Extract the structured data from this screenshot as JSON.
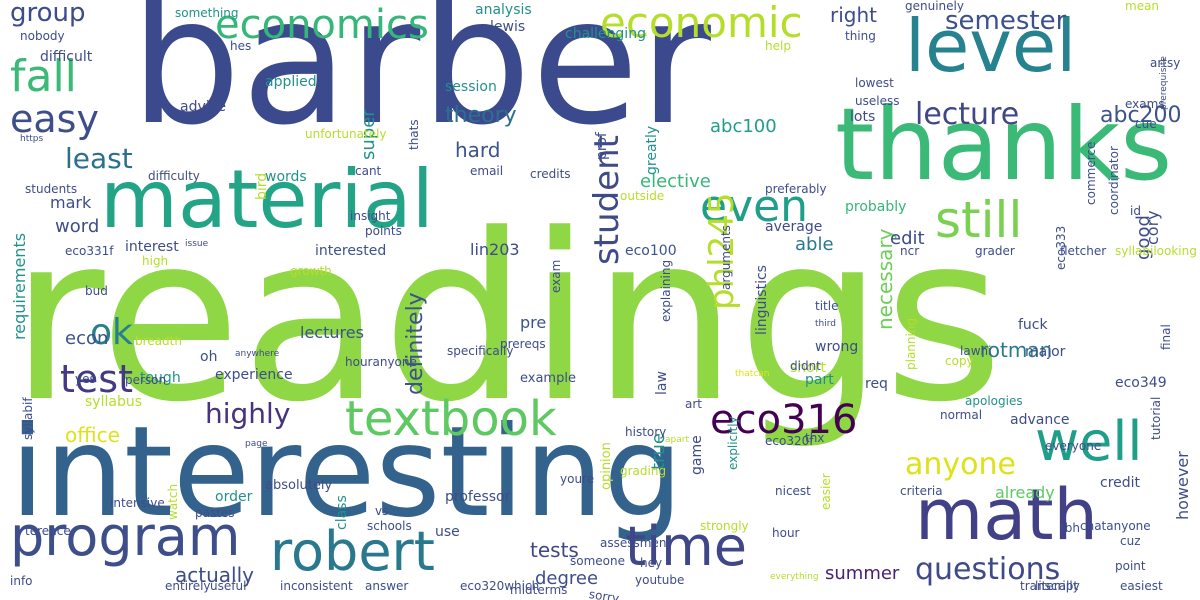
{
  "palette": {
    "dark_purple": "#440154",
    "indigo": "#3f4788",
    "blue": "#31688e",
    "teal": "#26828e",
    "sea": "#1f9e89",
    "green": "#35b779",
    "lime": "#6ece58",
    "yellow_green": "#b5de2b",
    "yellow": "#dde318"
  },
  "words": [
    {
      "text": "readings",
      "size": 230,
      "color": "#8fd744"
    },
    {
      "text": "barber",
      "size": 175,
      "color": "#3b4a8c"
    },
    {
      "text": "interesting",
      "size": 125,
      "color": "#33638d"
    },
    {
      "text": "thanks",
      "size": 100,
      "color": "#3aba76"
    },
    {
      "text": "material",
      "size": 80,
      "color": "#24a486"
    },
    {
      "text": "level",
      "size": 72,
      "color": "#26828e"
    },
    {
      "text": "math",
      "size": 70,
      "color": "#424086"
    },
    {
      "text": "robert",
      "size": 54,
      "color": "#2a788e"
    },
    {
      "text": "program",
      "size": 54,
      "color": "#3d4e8a"
    },
    {
      "text": "time",
      "size": 54,
      "color": "#3f4788"
    },
    {
      "text": "well",
      "size": 54,
      "color": "#1f9e89"
    },
    {
      "text": "still",
      "size": 50,
      "color": "#7ad151"
    },
    {
      "text": "textbook",
      "size": 48,
      "color": "#5ec962"
    },
    {
      "text": "economic",
      "size": 42,
      "color": "#b5de2b"
    },
    {
      "text": "economics",
      "size": 40,
      "color": "#35b779"
    },
    {
      "text": "even",
      "size": 44,
      "color": "#1f9e89"
    },
    {
      "text": "fall",
      "size": 44,
      "color": "#3aba76"
    },
    {
      "text": "easy",
      "size": 38,
      "color": "#3d4e8a"
    },
    {
      "text": "test",
      "size": 38,
      "color": "#443983"
    },
    {
      "text": "ok",
      "size": 36,
      "color": "#277f8e"
    },
    {
      "text": "student",
      "size": 34,
      "color": "#3e4a89"
    },
    {
      "text": "eco316",
      "size": 40,
      "color": "#440154"
    },
    {
      "text": "phl245",
      "size": 34,
      "color": "#b5de2b"
    },
    {
      "text": "anyone",
      "size": 30,
      "color": "#dde318"
    },
    {
      "text": "questions",
      "size": 30,
      "color": "#3e4a89"
    },
    {
      "text": "highly",
      "size": 28,
      "color": "#46327e"
    },
    {
      "text": "lecture",
      "size": 30,
      "color": "#3f4788"
    },
    {
      "text": "least",
      "size": 28,
      "color": "#2d708e"
    },
    {
      "text": "group",
      "size": 26,
      "color": "#3e4c8a"
    },
    {
      "text": "semester",
      "size": 26,
      "color": "#3b518b"
    },
    {
      "text": "abc200",
      "size": 22,
      "color": "#3b528b"
    },
    {
      "text": "right",
      "size": 20,
      "color": "#3e4c8a"
    },
    {
      "text": "theory",
      "size": 22,
      "color": "#2e6e8e"
    },
    {
      "text": "abc100",
      "size": 18,
      "color": "#1f9e89"
    },
    {
      "text": "hard",
      "size": 20,
      "color": "#3b528b"
    },
    {
      "text": "super",
      "size": 18,
      "color": "#21918c"
    },
    {
      "text": "definitely",
      "size": 22,
      "color": "#3b528b"
    },
    {
      "text": "actually",
      "size": 20,
      "color": "#3e4c8a"
    },
    {
      "text": "tests",
      "size": 20,
      "color": "#3f4788"
    },
    {
      "text": "summer",
      "size": 18,
      "color": "#482173"
    },
    {
      "text": "degree",
      "size": 18,
      "color": "#3e4c8a"
    },
    {
      "text": "rotman",
      "size": 20,
      "color": "#2a788e"
    },
    {
      "text": "necessary",
      "size": 20,
      "color": "#6ece58"
    },
    {
      "text": "office",
      "size": 20,
      "color": "#dde318"
    },
    {
      "text": "econ",
      "size": 18,
      "color": "#3b528b"
    },
    {
      "text": "mark",
      "size": 16,
      "color": "#3e4c8a"
    },
    {
      "text": "word",
      "size": 18,
      "color": "#3e4c8a"
    },
    {
      "text": "requirements",
      "size": 16,
      "color": "#21918c"
    },
    {
      "text": "true",
      "size": 18,
      "color": "#21918c"
    },
    {
      "text": "elective",
      "size": 18,
      "color": "#35b779"
    },
    {
      "text": "edit",
      "size": 18,
      "color": "#3e4c8a"
    },
    {
      "text": "able",
      "size": 18,
      "color": "#2a788e"
    },
    {
      "text": "good",
      "size": 18,
      "color": "#3e4c8a"
    },
    {
      "text": "cory",
      "size": 16,
      "color": "#3e4c8a"
    },
    {
      "text": "pre",
      "size": 16,
      "color": "#3b528b"
    },
    {
      "text": "lectures",
      "size": 16,
      "color": "#3b528b"
    },
    {
      "text": "already",
      "size": 16,
      "color": "#5ec962"
    },
    {
      "text": "advance",
      "size": 14,
      "color": "#3e4c8a"
    },
    {
      "text": "credit",
      "size": 14,
      "color": "#3e4c8a"
    },
    {
      "text": "however",
      "size": 16,
      "color": "#3e4c8a"
    },
    {
      "text": "lin203",
      "size": 16,
      "color": "#3e4c8a"
    },
    {
      "text": "interested",
      "size": 14,
      "color": "#3b528b"
    },
    {
      "text": "eco100",
      "size": 14,
      "color": "#3b528b"
    },
    {
      "text": "linguistics",
      "size": 14,
      "color": "#3e4c8a"
    },
    {
      "text": "fuck",
      "size": 14,
      "color": "#3e4c8a"
    },
    {
      "text": "major",
      "size": 14,
      "color": "#3e4c8a"
    },
    {
      "text": "eco349",
      "size": 14,
      "color": "#3e4c8a"
    },
    {
      "text": "average",
      "size": 14,
      "color": "#3e4c8a"
    },
    {
      "text": "probably",
      "size": 14,
      "color": "#35b779"
    },
    {
      "text": "wrong",
      "size": 14,
      "color": "#3e4c8a"
    },
    {
      "text": "short",
      "size": 14,
      "color": "#b5de2b"
    },
    {
      "text": "part",
      "size": 14,
      "color": "#21918c"
    },
    {
      "text": "req",
      "size": 14,
      "color": "#3e4c8a"
    },
    {
      "text": "example",
      "size": 13,
      "color": "#3e4c8a"
    },
    {
      "text": "law",
      "size": 14,
      "color": "#3e4c8a"
    },
    {
      "text": "opinion",
      "size": 13,
      "color": "#b5de2b"
    },
    {
      "text": "game",
      "size": 14,
      "color": "#3e4c8a"
    },
    {
      "text": "absolutely",
      "size": 13,
      "color": "#3e4c8a"
    },
    {
      "text": "professor",
      "size": 14,
      "color": "#3e4c8a"
    },
    {
      "text": "class",
      "size": 14,
      "color": "#21918c"
    },
    {
      "text": "schools",
      "size": 12,
      "color": "#3e4c8a"
    },
    {
      "text": "use",
      "size": 14,
      "color": "#3e4c8a"
    },
    {
      "text": "order",
      "size": 14,
      "color": "#21918c"
    },
    {
      "text": "oh",
      "size": 14,
      "color": "#3e4c8a"
    },
    {
      "text": "tough",
      "size": 14,
      "color": "#21918c"
    },
    {
      "text": "syllabus",
      "size": 14,
      "color": "#b5de2b"
    },
    {
      "text": "experience",
      "size": 14,
      "color": "#3e4c8a"
    },
    {
      "text": "info",
      "size": 12,
      "color": "#3e4c8a"
    },
    {
      "text": "entirely",
      "size": 12,
      "color": "#3e4c8a"
    },
    {
      "text": "useful",
      "size": 12,
      "color": "#3e4c8a"
    },
    {
      "text": "inconsistent",
      "size": 12,
      "color": "#3e4c8a"
    },
    {
      "text": "answer",
      "size": 12,
      "color": "#3e4c8a"
    },
    {
      "text": "eco320which",
      "size": 12,
      "color": "#3e4c8a"
    },
    {
      "text": "midterms",
      "size": 12,
      "color": "#3e4c8a"
    },
    {
      "text": "youtube",
      "size": 12,
      "color": "#3e4c8a"
    },
    {
      "text": "transcript",
      "size": 12,
      "color": "#3e4c8a"
    },
    {
      "text": "literally",
      "size": 12,
      "color": "#3e4c8a"
    },
    {
      "text": "easiest",
      "size": 12,
      "color": "#3e4c8a"
    },
    {
      "text": "point",
      "size": 12,
      "color": "#3e4c8a"
    },
    {
      "text": "cuz",
      "size": 12,
      "color": "#3e4c8a"
    },
    {
      "text": "tbh",
      "size": 12,
      "color": "#3e4c8a"
    },
    {
      "text": "nicest",
      "size": 12,
      "color": "#3e4c8a"
    },
    {
      "text": "hour",
      "size": 12,
      "color": "#3e4c8a"
    },
    {
      "text": "hey",
      "size": 12,
      "color": "#3e4c8a"
    },
    {
      "text": "assessment",
      "size": 12,
      "color": "#3e4c8a"
    },
    {
      "text": "someone",
      "size": 12,
      "color": "#3e4c8a"
    },
    {
      "text": "strongly",
      "size": 12,
      "color": "#b5de2b"
    },
    {
      "text": "everything",
      "size": 9,
      "color": "#b5de2b"
    },
    {
      "text": "sorry",
      "size": 12,
      "color": "#3e4c8a"
    },
    {
      "text": "chatanyone",
      "size": 12,
      "color": "#3e4c8a"
    },
    {
      "text": "everyone",
      "size": 12,
      "color": "#3e4c8a"
    },
    {
      "text": "normal",
      "size": 12,
      "color": "#3e4c8a"
    },
    {
      "text": "criteria",
      "size": 12,
      "color": "#3e4c8a"
    },
    {
      "text": "lawhi",
      "size": 12,
      "color": "#3e4c8a"
    },
    {
      "text": "apologies",
      "size": 12,
      "color": "#21918c"
    },
    {
      "text": "tutorial",
      "size": 12,
      "color": "#3e4c8a"
    },
    {
      "text": "eco320f",
      "size": 12,
      "color": "#3e4c8a"
    },
    {
      "text": "thx",
      "size": 12,
      "color": "#3e4c8a"
    },
    {
      "text": "apart",
      "size": 9,
      "color": "#b5de2b"
    },
    {
      "text": "grading",
      "size": 12,
      "color": "#b5de2b"
    },
    {
      "text": "history",
      "size": 12,
      "color": "#3e4c8a"
    },
    {
      "text": "art",
      "size": 12,
      "color": "#3e4c8a"
    },
    {
      "text": "thatcan",
      "size": 9,
      "color": "#dde318"
    },
    {
      "text": "didnt",
      "size": 12,
      "color": "#3e4c8a"
    },
    {
      "text": "title",
      "size": 12,
      "color": "#3e4c8a"
    },
    {
      "text": "third",
      "size": 9,
      "color": "#3e4c8a"
    },
    {
      "text": "copy",
      "size": 12,
      "color": "#b5de2b"
    },
    {
      "text": "eco333",
      "size": 12,
      "color": "#3e4c8a"
    },
    {
      "text": "fletcher",
      "size": 12,
      "color": "#3e4c8a"
    },
    {
      "text": "grader",
      "size": 12,
      "color": "#3e4c8a"
    },
    {
      "text": "ncr",
      "size": 12,
      "color": "#3e4c8a"
    },
    {
      "text": "syllabilooking",
      "size": 12,
      "color": "#b5de2b"
    },
    {
      "text": "final",
      "size": 12,
      "color": "#3e4c8a"
    },
    {
      "text": "id",
      "size": 12,
      "color": "#3e4c8a"
    },
    {
      "text": "coordinator",
      "size": 12,
      "color": "#3e4c8a"
    },
    {
      "text": "commerce",
      "size": 12,
      "color": "#3e4c8a"
    },
    {
      "text": "cue",
      "size": 12,
      "color": "#3e4c8a"
    },
    {
      "text": "prerequisite",
      "size": 9,
      "color": "#3e4c8a"
    },
    {
      "text": "exams",
      "size": 12,
      "color": "#3e4c8a"
    },
    {
      "text": "lots",
      "size": 14,
      "color": "#3e4c8a"
    },
    {
      "text": "useless",
      "size": 12,
      "color": "#3e4c8a"
    },
    {
      "text": "lowest",
      "size": 12,
      "color": "#3e4c8a"
    },
    {
      "text": "thing",
      "size": 12,
      "color": "#3e4c8a"
    },
    {
      "text": "genuinely",
      "size": 12,
      "color": "#3e4c8a"
    },
    {
      "text": "mean",
      "size": 12,
      "color": "#b5de2b"
    },
    {
      "text": "artsy",
      "size": 12,
      "color": "#3e4c8a"
    },
    {
      "text": "help",
      "size": 12,
      "color": "#b5de2b"
    },
    {
      "text": "challenging",
      "size": 14,
      "color": "#21918c"
    },
    {
      "text": "greatly",
      "size": 14,
      "color": "#21918c"
    },
    {
      "text": "prof",
      "size": 14,
      "color": "#3e4c8a"
    },
    {
      "text": "lewis",
      "size": 14,
      "color": "#3e4c8a"
    },
    {
      "text": "analysis",
      "size": 14,
      "color": "#21918c"
    },
    {
      "text": "session",
      "size": 14,
      "color": "#21918c"
    },
    {
      "text": "applied",
      "size": 14,
      "color": "#21918c"
    },
    {
      "text": "bird",
      "size": 14,
      "color": "#b5de2b"
    },
    {
      "text": "advice",
      "size": 14,
      "color": "#3e4c8a"
    },
    {
      "text": "words",
      "size": 14,
      "color": "#21918c"
    },
    {
      "text": "email",
      "size": 12,
      "color": "#3e4c8a"
    },
    {
      "text": "cant",
      "size": 12,
      "color": "#3e4c8a"
    },
    {
      "text": "points",
      "size": 12,
      "color": "#3e4c8a"
    },
    {
      "text": "insight",
      "size": 12,
      "color": "#3e4c8a"
    },
    {
      "text": "difficulty",
      "size": 12,
      "color": "#3e4c8a"
    },
    {
      "text": "issue",
      "size": 9,
      "color": "#3e4c8a"
    },
    {
      "text": "interest",
      "size": 14,
      "color": "#3e4c8a"
    },
    {
      "text": "eco331f",
      "size": 12,
      "color": "#3e4c8a"
    },
    {
      "text": "high",
      "size": 12,
      "color": "#b5de2b"
    },
    {
      "text": "growth",
      "size": 12,
      "color": "#b5de2b"
    },
    {
      "text": "bud",
      "size": 12,
      "color": "#3e4c8a"
    },
    {
      "text": "breadth",
      "size": 12,
      "color": "#b5de2b"
    },
    {
      "text": "yes",
      "size": 12,
      "color": "#3e4c8a"
    },
    {
      "text": "person",
      "size": 12,
      "color": "#3e4c8a"
    },
    {
      "text": "anywhere",
      "size": 9,
      "color": "#3e4c8a"
    },
    {
      "text": "houranyone",
      "size": 12,
      "color": "#3e4c8a"
    },
    {
      "text": "pastes",
      "size": 12,
      "color": "#3e4c8a"
    },
    {
      "text": "prereqs",
      "size": 12,
      "color": "#3e4c8a"
    },
    {
      "text": "specifically",
      "size": 12,
      "color": "#3e4c8a"
    },
    {
      "text": "explaining",
      "size": 12,
      "color": "#3e4c8a"
    },
    {
      "text": "arguments",
      "size": 12,
      "color": "#3e4c8a"
    },
    {
      "text": "exam",
      "size": 12,
      "color": "#3e4c8a"
    },
    {
      "text": "credits",
      "size": 12,
      "color": "#3e4c8a"
    },
    {
      "text": "preferably",
      "size": 12,
      "color": "#3e4c8a"
    },
    {
      "text": "outside",
      "size": 12,
      "color": "#b5de2b"
    },
    {
      "text": "students",
      "size": 12,
      "color": "#3e4c8a"
    },
    {
      "text": "https",
      "size": 9,
      "color": "#3e4c8a"
    },
    {
      "text": "unfortunately",
      "size": 12,
      "color": "#b5de2b"
    },
    {
      "text": "thats",
      "size": 12,
      "color": "#3e4c8a"
    },
    {
      "text": "difficult",
      "size": 14,
      "color": "#3e4c8a"
    },
    {
      "text": "nobody",
      "size": 12,
      "color": "#3e4c8a"
    },
    {
      "text": "hes",
      "size": 12,
      "color": "#3e4c8a"
    },
    {
      "text": "something",
      "size": 12,
      "color": "#21918c"
    },
    {
      "text": "syllabif",
      "size": 12,
      "color": "#3e4c8a"
    },
    {
      "text": "terence",
      "size": 12,
      "color": "#3e4c8a"
    },
    {
      "text": "page",
      "size": 9,
      "color": "#3e4c8a"
    },
    {
      "text": "intensive",
      "size": 12,
      "color": "#3e4c8a"
    },
    {
      "text": "watch",
      "size": 12,
      "color": "#b5de2b"
    },
    {
      "text": "vs",
      "size": 12,
      "color": "#3e4c8a"
    },
    {
      "text": "youre",
      "size": 12,
      "color": "#3e4c8a"
    },
    {
      "text": "explicitly",
      "size": 12,
      "color": "#21918c"
    },
    {
      "text": "easier",
      "size": 12,
      "color": "#b5de2b"
    },
    {
      "text": "planning",
      "size": 12,
      "color": "#b5de2b"
    }
  ]
}
